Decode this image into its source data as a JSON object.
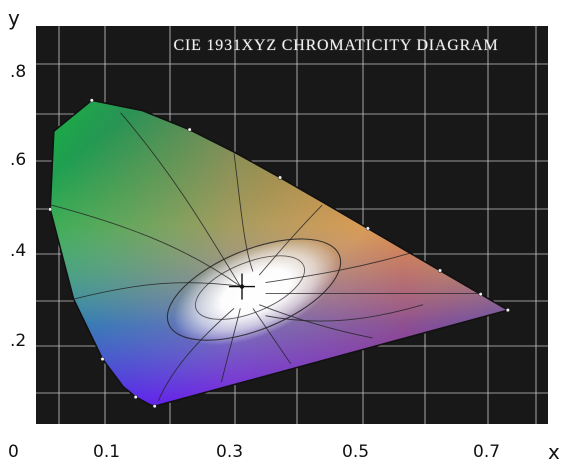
{
  "chart_data": {
    "type": "scatter",
    "title": "CIE 1931XYZ CHROMATICITY DIAGRAM",
    "xlabel": "x",
    "ylabel": "y",
    "x_ticks": [
      "0",
      "0.1",
      "0.3",
      "0.5",
      "0.7"
    ],
    "y_ticks": [
      ".8",
      ".6",
      ".4",
      ".2"
    ],
    "xlim": [
      0,
      0.82
    ],
    "ylim": [
      0,
      0.9
    ],
    "grid": true,
    "legend": "none",
    "series": [
      {
        "values": [
          {
            "x": 0.1741,
            "y": 0.005
          },
          {
            "x": 0.1666,
            "y": 0.0089
          },
          {
            "x": 0.144,
            "y": 0.0297
          },
          {
            "x": 0.1241,
            "y": 0.0578
          },
          {
            "x": 0.0913,
            "y": 0.1327
          },
          {
            "x": 0.0454,
            "y": 0.295
          },
          {
            "x": 0.0082,
            "y": 0.5384
          },
          {
            "x": 0.0139,
            "y": 0.7502
          },
          {
            "x": 0.0743,
            "y": 0.8338
          },
          {
            "x": 0.1547,
            "y": 0.8059
          },
          {
            "x": 0.2296,
            "y": 0.7543
          },
          {
            "x": 0.3016,
            "y": 0.6923
          },
          {
            "x": 0.3731,
            "y": 0.6245
          },
          {
            "x": 0.4441,
            "y": 0.5547
          },
          {
            "x": 0.5125,
            "y": 0.4866
          },
          {
            "x": 0.5752,
            "y": 0.4242
          },
          {
            "x": 0.627,
            "y": 0.3725
          },
          {
            "x": 0.6658,
            "y": 0.334
          },
          {
            "x": 0.6915,
            "y": 0.3083
          },
          {
            "x": 0.7347,
            "y": 0.2653
          }
        ]
      }
    ],
    "white_point": {
      "x": 0.3127,
      "y": 0.329
    }
  }
}
